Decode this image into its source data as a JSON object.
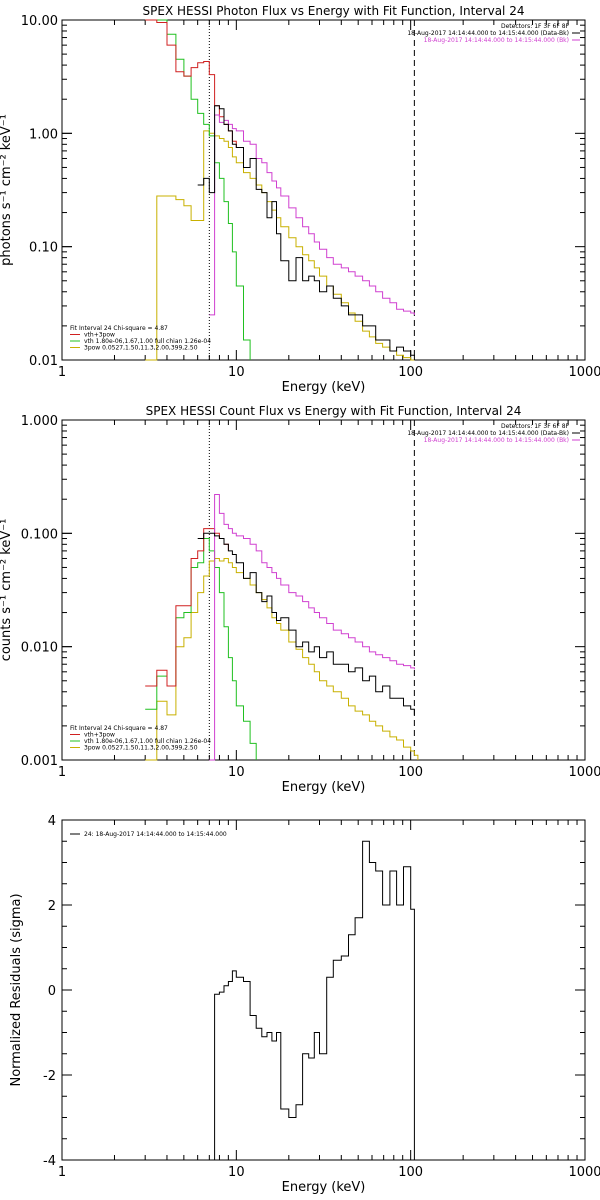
{
  "chart_data": [
    {
      "type": "line",
      "title": "SPEX HESSI Photon Flux vs Energy with Fit Function, Interval 24",
      "xlabel": "Energy (keV)",
      "ylabel": "photons s⁻¹ cm⁻² keV⁻¹",
      "x_scale": "log",
      "y_scale": "log",
      "xlim": [
        1,
        1000
      ],
      "ylim": [
        0.01,
        10
      ],
      "xticks": [
        "1",
        "10",
        "100",
        "1000"
      ],
      "yticks": [
        "0.01",
        "0.10",
        "1.00",
        "10.00"
      ],
      "vlines": [
        {
          "x": 7.0,
          "style": "dotted"
        },
        {
          "x": 105,
          "style": "dashed"
        }
      ],
      "legend_top": [
        {
          "text": "Detectors: 1F 3F 6F 8F",
          "color": "#000000"
        },
        {
          "text": "18-Aug-2017 14:14:44.000 to 14:15:44.000 (Data-Bk)",
          "color": "#000000"
        },
        {
          "text": "18-Aug-2017 14:14:44.000 to 14:15:44.000 (Bk)",
          "color": "#d040d0"
        }
      ],
      "legend_bottom": [
        {
          "text": "Fit Interval 24    Chi-square = 4.87",
          "color": "#000000"
        },
        {
          "text": "vth+3pow",
          "color": "#d02020"
        },
        {
          "text": "vth 1.80e-06,1.67,1.00  full chian 1.26e-04",
          "color": "#20c020"
        },
        {
          "text": "3pow 0.0527,1.50,11.3,2.00,399,2.50",
          "color": "#c8b000"
        }
      ],
      "series": [
        {
          "color": "#000000",
          "x": [
            6.0,
            6.5,
            7.0,
            7.5,
            8.0,
            8.5,
            9.0,
            9.5,
            10.0,
            11,
            12,
            13,
            14,
            15,
            16,
            17,
            18,
            20,
            22,
            24,
            26,
            28,
            30,
            33,
            36,
            40,
            44,
            48,
            53,
            58,
            63,
            69,
            76,
            83,
            91,
            100,
            105
          ],
          "y": [
            0.35,
            0.4,
            0.3,
            1.75,
            1.65,
            1.2,
            1.05,
            0.8,
            0.75,
            0.5,
            0.6,
            0.32,
            0.3,
            0.18,
            0.25,
            0.13,
            0.075,
            0.05,
            0.08,
            0.05,
            0.055,
            0.05,
            0.04,
            0.045,
            0.035,
            0.03,
            0.025,
            0.025,
            0.02,
            0.02,
            0.015,
            0.015,
            0.012,
            0.013,
            0.012,
            0.011,
            0.01
          ]
        },
        {
          "color": "#d040d0",
          "x": [
            7.0,
            7.5,
            8.0,
            8.5,
            9.0,
            9.5,
            10,
            11,
            12,
            13,
            14,
            15,
            16,
            17,
            18,
            20,
            22,
            24,
            26,
            28,
            30,
            33,
            36,
            40,
            44,
            48,
            53,
            58,
            63,
            69,
            76,
            83,
            91,
            100,
            105
          ],
          "y": [
            0.025,
            1.45,
            1.25,
            1.3,
            1.2,
            1.1,
            1.05,
            0.85,
            0.8,
            0.6,
            0.55,
            0.45,
            0.38,
            0.33,
            0.28,
            0.22,
            0.18,
            0.15,
            0.13,
            0.11,
            0.095,
            0.08,
            0.07,
            0.065,
            0.06,
            0.055,
            0.05,
            0.045,
            0.04,
            0.035,
            0.032,
            0.028,
            0.027,
            0.026,
            0.025
          ]
        },
        {
          "color": "#d02020",
          "x": [
            3.0,
            3.5,
            4.0,
            4.5,
            5.0,
            5.5,
            6.0,
            6.5,
            7.0,
            7.5,
            8.0,
            8.5,
            9.0,
            9.5,
            10
          ],
          "y": [
            10,
            9.5,
            6.0,
            3.5,
            3.2,
            3.8,
            4.2,
            4.3,
            3.3,
            1.75,
            1.4,
            1.2,
            1.05,
            0.85,
            0.75
          ]
        },
        {
          "color": "#20c020",
          "x": [
            3.0,
            3.5,
            4.0,
            4.5,
            5.0,
            5.5,
            6.0,
            6.5,
            7.0,
            7.5,
            8.0,
            8.5,
            9.0,
            9.5,
            10,
            11,
            12
          ],
          "y": [
            10,
            10,
            7.5,
            4.5,
            3.2,
            2.0,
            1.5,
            1.2,
            0.95,
            0.55,
            0.4,
            0.25,
            0.16,
            0.09,
            0.045,
            0.015,
            0.01
          ]
        },
        {
          "color": "#c8b000",
          "x": [
            3.0,
            3.5,
            4.0,
            4.5,
            5.0,
            5.5,
            6.0,
            6.5,
            7.0,
            7.5,
            8.0,
            8.5,
            9.0,
            9.5,
            10,
            11,
            12,
            13,
            14,
            15,
            16,
            17,
            18,
            20,
            22,
            24,
            26,
            28,
            30,
            33,
            36,
            40,
            44,
            48,
            53,
            58,
            63,
            69,
            76,
            83,
            91,
            100,
            105
          ],
          "y": [
            0.01,
            0.28,
            0.28,
            0.26,
            0.23,
            0.17,
            0.17,
            1.05,
            1.0,
            0.95,
            0.9,
            0.85,
            0.75,
            0.62,
            0.55,
            0.45,
            0.4,
            0.35,
            0.3,
            0.25,
            0.21,
            0.18,
            0.15,
            0.12,
            0.1,
            0.085,
            0.075,
            0.065,
            0.055,
            0.045,
            0.038,
            0.032,
            0.026,
            0.022,
            0.018,
            0.016,
            0.014,
            0.013,
            0.012,
            0.011,
            0.0105,
            0.01,
            0.01
          ]
        }
      ]
    },
    {
      "type": "line",
      "title": "SPEX HESSI Count Flux vs Energy with Fit Function, Interval 24",
      "xlabel": "Energy (keV)",
      "ylabel": "counts s⁻¹ cm⁻² keV⁻¹",
      "x_scale": "log",
      "y_scale": "log",
      "xlim": [
        1,
        1000
      ],
      "ylim": [
        0.001,
        1
      ],
      "xticks": [
        "1",
        "10",
        "100",
        "1000"
      ],
      "yticks": [
        "0.001",
        "0.010",
        "0.100",
        "1.000"
      ],
      "vlines": [
        {
          "x": 7.0,
          "style": "dotted"
        },
        {
          "x": 105,
          "style": "dashed"
        }
      ],
      "legend_top": [
        {
          "text": "Detectors: 1F 3F 6F 8F",
          "color": "#000000"
        },
        {
          "text": "18-Aug-2017 14:14:44.000 to 14:15:44.000 (Data-Bk)",
          "color": "#000000"
        },
        {
          "text": "18-Aug-2017 14:14:44.000 to 14:15:44.000 (Bk)",
          "color": "#d040d0"
        }
      ],
      "legend_bottom": [
        {
          "text": "Fit Interval 24    Chi-square = 4.87",
          "color": "#000000"
        },
        {
          "text": "vth+3pow",
          "color": "#d02020"
        },
        {
          "text": "vth 1.80e-06,1.67,1.00  full chian 1.26e-04",
          "color": "#20c020"
        },
        {
          "text": "3pow 0.0527,1.50,11.3,2.00,399,2.50",
          "color": "#c8b000"
        }
      ],
      "series": [
        {
          "color": "#000000",
          "x": [
            6.0,
            6.5,
            7.0,
            7.5,
            8.0,
            8.5,
            9.0,
            9.5,
            10,
            11,
            12,
            13,
            14,
            15,
            16,
            17,
            18,
            20,
            22,
            24,
            26,
            28,
            30,
            33,
            36,
            40,
            44,
            48,
            53,
            58,
            63,
            69,
            76,
            83,
            91,
            100,
            105
          ],
          "y": [
            0.09,
            0.1,
            0.1,
            0.095,
            0.09,
            0.08,
            0.07,
            0.065,
            0.055,
            0.04,
            0.045,
            0.03,
            0.025,
            0.028,
            0.02,
            0.017,
            0.018,
            0.014,
            0.01,
            0.011,
            0.009,
            0.01,
            0.008,
            0.009,
            0.007,
            0.007,
            0.006,
            0.0065,
            0.005,
            0.0055,
            0.004,
            0.0045,
            0.0035,
            0.0035,
            0.003,
            0.0028,
            0.0025
          ]
        },
        {
          "color": "#d040d0",
          "x": [
            7.0,
            7.5,
            8.0,
            8.5,
            9.0,
            9.5,
            10,
            11,
            12,
            13,
            14,
            15,
            16,
            17,
            18,
            20,
            22,
            24,
            26,
            28,
            30,
            33,
            36,
            40,
            44,
            48,
            53,
            58,
            63,
            69,
            76,
            83,
            91,
            100,
            105
          ],
          "y": [
            0.001,
            0.22,
            0.15,
            0.12,
            0.11,
            0.1,
            0.095,
            0.09,
            0.08,
            0.07,
            0.055,
            0.05,
            0.045,
            0.04,
            0.035,
            0.03,
            0.028,
            0.025,
            0.022,
            0.02,
            0.018,
            0.016,
            0.014,
            0.013,
            0.012,
            0.011,
            0.01,
            0.009,
            0.0085,
            0.008,
            0.0075,
            0.007,
            0.0068,
            0.0065,
            0.0063
          ]
        },
        {
          "color": "#d02020",
          "x": [
            3.0,
            3.5,
            4.0,
            4.5,
            5.0,
            5.5,
            6.0,
            6.5,
            7.0,
            7.5,
            8.0,
            8.5,
            9.0
          ],
          "y": [
            0.0045,
            0.0062,
            0.0045,
            0.023,
            0.023,
            0.06,
            0.07,
            0.11,
            0.11,
            0.1,
            0.09,
            0.08,
            0.07
          ]
        },
        {
          "color": "#20c020",
          "x": [
            3.0,
            3.5,
            4.0,
            4.5,
            5.0,
            5.5,
            6.0,
            6.5,
            7.0,
            7.5,
            8.0,
            8.5,
            9.0,
            9.5,
            10,
            11,
            12,
            13
          ],
          "y": [
            0.0028,
            0.0055,
            0.0045,
            0.018,
            0.02,
            0.05,
            0.055,
            0.09,
            0.07,
            0.05,
            0.03,
            0.015,
            0.008,
            0.005,
            0.003,
            0.0022,
            0.0014,
            0.001
          ]
        },
        {
          "color": "#c8b000",
          "x": [
            3.0,
            3.5,
            4.0,
            4.5,
            5.0,
            5.5,
            6.0,
            6.5,
            7.0,
            7.5,
            8.0,
            8.5,
            9.0,
            9.5,
            10,
            11,
            12,
            13,
            14,
            15,
            16,
            17,
            18,
            20,
            22,
            24,
            26,
            28,
            30,
            33,
            36,
            40,
            44,
            48,
            53,
            58,
            63,
            69,
            76,
            83,
            91,
            100,
            105,
            110
          ],
          "y": [
            0.001,
            0.0033,
            0.0025,
            0.01,
            0.012,
            0.02,
            0.03,
            0.042,
            0.057,
            0.06,
            0.057,
            0.06,
            0.055,
            0.05,
            0.045,
            0.04,
            0.035,
            0.03,
            0.026,
            0.022,
            0.018,
            0.016,
            0.014,
            0.011,
            0.0095,
            0.008,
            0.007,
            0.006,
            0.005,
            0.0045,
            0.004,
            0.0035,
            0.003,
            0.0027,
            0.0025,
            0.0022,
            0.002,
            0.0018,
            0.0016,
            0.0015,
            0.0013,
            0.0012,
            0.0011,
            0.001
          ]
        }
      ]
    },
    {
      "type": "line",
      "title": "",
      "xlabel": "Energy (keV)",
      "ylabel": "Normalized Residuals (sigma)",
      "x_scale": "log",
      "y_scale": "linear",
      "xlim": [
        1,
        1000
      ],
      "ylim": [
        -4,
        4
      ],
      "xticks": [
        "1",
        "10",
        "100",
        "1000"
      ],
      "yticks": [
        "-4",
        "-2",
        "0",
        "2",
        "4"
      ],
      "legend_top": [
        {
          "text": "24: 18-Aug-2017 14:14:44.000 to 14:15:44.000",
          "color": "#000000"
        }
      ],
      "series": [
        {
          "color": "#000000",
          "x": [
            7.0,
            7.5,
            8.0,
            8.5,
            9.0,
            9.5,
            10,
            11,
            12,
            13,
            14,
            15,
            16,
            17,
            18,
            20,
            22,
            24,
            26,
            28,
            30,
            33,
            36,
            40,
            44,
            48,
            53,
            58,
            63,
            69,
            76,
            83,
            91,
            100,
            105
          ],
          "y": [
            -4,
            -0.1,
            -0.05,
            0.1,
            0.2,
            0.45,
            0.3,
            0.2,
            -0.6,
            -0.9,
            -1.1,
            -1.0,
            -1.2,
            -1.0,
            -2.8,
            -3.0,
            -2.7,
            -1.5,
            -1.6,
            -1.0,
            -1.5,
            0.3,
            0.7,
            0.8,
            1.3,
            1.7,
            3.5,
            3.0,
            2.8,
            2.0,
            2.8,
            2.0,
            2.9,
            1.9,
            -4
          ]
        }
      ]
    }
  ]
}
